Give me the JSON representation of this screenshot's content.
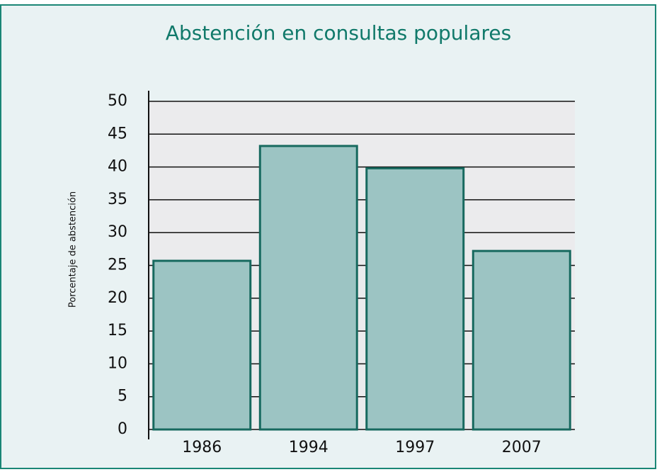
{
  "chart_data": {
    "type": "bar",
    "title": "Abstención en consultas populares",
    "y_label": "Porcentaje de abstención",
    "categories": [
      "1986",
      "1994",
      "1997",
      "2007"
    ],
    "values": [
      25.7,
      43.2,
      39.8,
      27.2
    ],
    "color": "#9cc4c3",
    "ylim": [
      0,
      50
    ],
    "yticks": [
      0,
      5,
      10,
      15,
      20,
      25,
      30,
      35,
      40,
      45,
      50
    ],
    "grid": true
  }
}
